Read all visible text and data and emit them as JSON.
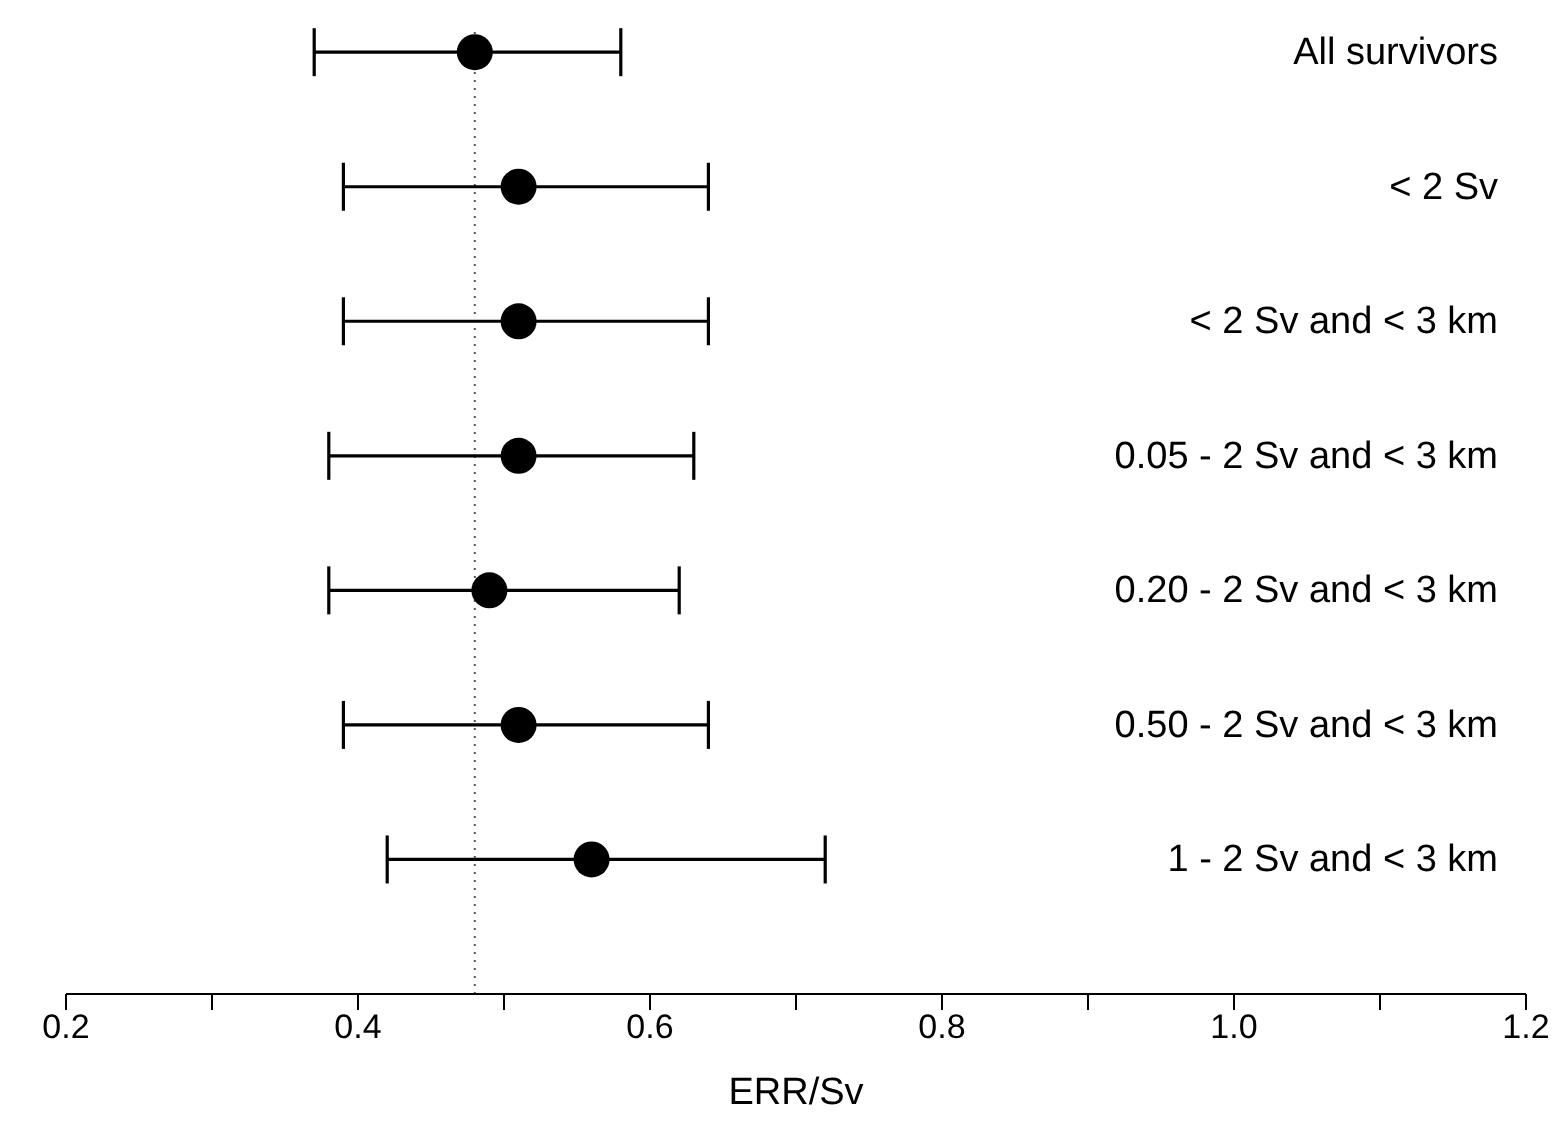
{
  "chart_data": {
    "type": "scatter",
    "xlabel": "ERR/Sv",
    "categories": [
      "All survivors",
      "< 2 Sv",
      "< 2 Sv and < 3 km",
      "0.05 - 2 Sv and < 3 km",
      "0.20 - 2 Sv and < 3 km",
      "0.50 - 2 Sv and < 3 km",
      "1 - 2 Sv and < 3 km"
    ],
    "series": [
      {
        "color": "#000000",
        "values": [
          0.48,
          0.51,
          0.51,
          0.51,
          0.49,
          0.51,
          0.56
        ],
        "errors": [
          [
            0.37,
            0.58
          ],
          [
            0.39,
            0.64
          ],
          [
            0.39,
            0.64
          ],
          [
            0.38,
            0.63
          ],
          [
            0.38,
            0.62
          ],
          [
            0.39,
            0.64
          ],
          [
            0.42,
            0.72
          ]
        ]
      }
    ],
    "orientation": "horizontal",
    "marker": "circle",
    "xlim": [
      0.2,
      1.2
    ],
    "xticks": [
      0.2,
      {
        "value": 0.3,
        "label": null
      },
      0.4,
      {
        "value": 0.5,
        "label": null
      },
      0.6,
      {
        "value": 0.7,
        "label": null
      },
      0.8,
      {
        "value": 0.9,
        "label": null
      },
      "1.0",
      {
        "value": 1.1,
        "label": null
      },
      1.2
    ],
    "ref_lines": [
      {
        "axis": "x",
        "value": 0.48,
        "line_style": "dotted",
        "color": "#555555"
      }
    ],
    "grid": false,
    "legend": false
  }
}
